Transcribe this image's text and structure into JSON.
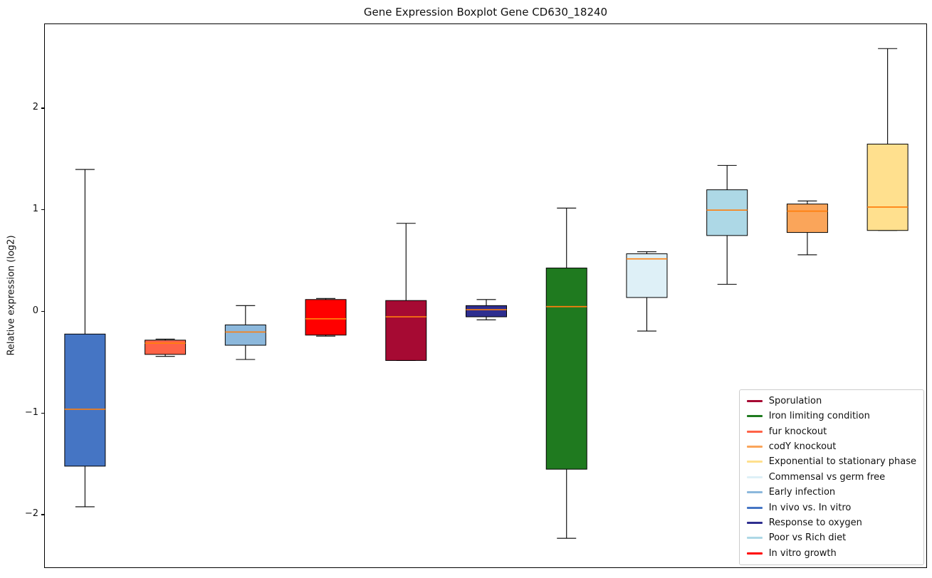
{
  "chart_data": {
    "type": "boxplot",
    "title": "Gene Expression Boxplot Gene CD630_18240",
    "ylabel": "Relative expression (log2)",
    "ylim": [
      -2.53,
      2.83
    ],
    "yticks": [
      {
        "value": -2,
        "label": "−2"
      },
      {
        "value": -1,
        "label": "−1"
      },
      {
        "value": 0,
        "label": "0"
      },
      {
        "value": 1,
        "label": "1"
      },
      {
        "value": 2,
        "label": "2"
      }
    ],
    "median_color": "#ff7f0e",
    "box_edge_color": "#000000",
    "boxes": [
      {
        "label": "In vivo vs. In vitro",
        "color": "#4575c4",
        "whisker_low": -1.92,
        "q1": -1.52,
        "median": -0.96,
        "q3": -0.22,
        "whisker_high": 1.4
      },
      {
        "label": "fur knockout",
        "color": "#ff6347",
        "whisker_low": -0.44,
        "q1": -0.42,
        "median": -0.31,
        "q3": -0.28,
        "whisker_high": -0.27
      },
      {
        "label": "Early infection",
        "color": "#8cb8dc",
        "whisker_low": -0.47,
        "q1": -0.33,
        "median": -0.2,
        "q3": -0.13,
        "whisker_high": 0.06
      },
      {
        "label": "In vitro growth",
        "color": "#ff0000",
        "whisker_low": -0.24,
        "q1": -0.23,
        "median": -0.07,
        "q3": 0.12,
        "whisker_high": 0.13
      },
      {
        "label": "Sporulation",
        "color": "#a60a33",
        "whisker_low": -0.48,
        "q1": -0.48,
        "median": -0.05,
        "q3": 0.11,
        "whisker_high": 0.87
      },
      {
        "label": "Response to oxygen",
        "color": "#2e2e8f",
        "whisker_low": -0.08,
        "q1": -0.05,
        "median": 0.02,
        "q3": 0.06,
        "whisker_high": 0.12
      },
      {
        "label": "Iron limiting condition",
        "color": "#1f7a1f",
        "whisker_low": -2.23,
        "q1": -1.55,
        "median": 0.05,
        "q3": 0.43,
        "whisker_high": 1.02
      },
      {
        "label": "Commensal vs germ free",
        "color": "#def0f7",
        "whisker_low": -0.19,
        "q1": 0.14,
        "median": 0.52,
        "q3": 0.57,
        "whisker_high": 0.59
      },
      {
        "label": "Poor vs Rich diet",
        "color": "#add8e6",
        "whisker_low": 0.27,
        "q1": 0.75,
        "median": 1.0,
        "q3": 1.2,
        "whisker_high": 1.44
      },
      {
        "label": "codY knockout",
        "color": "#faa55a",
        "whisker_low": 0.56,
        "q1": 0.78,
        "median": 0.99,
        "q3": 1.06,
        "whisker_high": 1.09
      },
      {
        "label": "Exponential to stationary phase",
        "color": "#ffe08e",
        "whisker_low": 0.8,
        "q1": 0.8,
        "median": 1.03,
        "q3": 1.65,
        "whisker_high": 2.59
      }
    ],
    "legend": {
      "position": "lower right",
      "entries": [
        {
          "label": "Sporulation",
          "color": "#a60a33"
        },
        {
          "label": "Iron limiting condition",
          "color": "#1f7a1f"
        },
        {
          "label": "fur knockout",
          "color": "#ff6347"
        },
        {
          "label": "codY knockout",
          "color": "#faa55a"
        },
        {
          "label": "Exponential to stationary phase",
          "color": "#ffe08e"
        },
        {
          "label": "Commensal vs germ free",
          "color": "#def0f7"
        },
        {
          "label": "Early infection",
          "color": "#8cb8dc"
        },
        {
          "label": "In vivo vs. In vitro",
          "color": "#4575c4"
        },
        {
          "label": "Response to oxygen",
          "color": "#2e2e8f"
        },
        {
          "label": "Poor vs Rich diet",
          "color": "#add8e6"
        },
        {
          "label": "In vitro growth",
          "color": "#ff0000"
        }
      ]
    }
  }
}
